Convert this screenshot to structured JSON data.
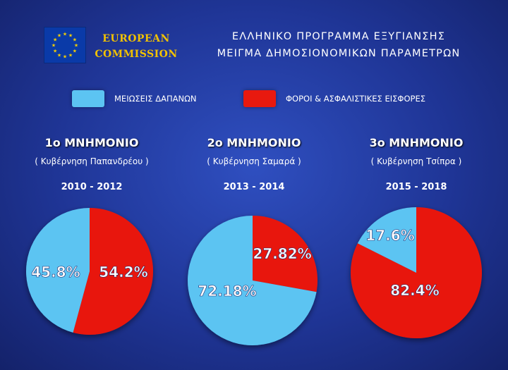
{
  "header": {
    "commission": [
      "EUROPEAN",
      "COMMISSION"
    ],
    "title_line1": "ΕΛΛΗΝΙΚΟ ΠΡΟΓΡΑΜΜΑ ΕΞΥΓΙΑΝΣΗΣ",
    "title_line2": "ΜΕΙΓΜΑ ΔΗΜΟΣΙΟΝΟΜΙΚΩΝ ΠΑΡΑΜΕΤΡΩΝ"
  },
  "legend": [
    {
      "label": "ΜΕΙΩΣΕΙΣ ΔΑΠΑΝΩΝ",
      "color": "#5cc4f2"
    },
    {
      "label": "ΦΟΡΟΙ & ΑΣΦΑΛΙΣΤΙΚΕΣ ΕΙΣΦΟΡΕΣ",
      "color": "#e8190f"
    }
  ],
  "chart_data": [
    {
      "type": "pie",
      "title": "1ο ΜΝΗΜΟΝΙΟ",
      "subtitle": "( Κυβέρνηση Παπανδρέου )",
      "period": "2010 - 2012",
      "slices": [
        {
          "label": "ΜΕΙΩΣΕΙΣ ΔΑΠΑΝΩΝ",
          "value": 45.8,
          "display": "45.8%",
          "color": "#5cc4f2"
        },
        {
          "label": "ΦΟΡΟΙ & ΑΣΦΑΛΙΣΤΙΚΕΣ ΕΙΣΦΟΡΕΣ",
          "value": 54.2,
          "display": "54.2%",
          "color": "#e8190f"
        }
      ]
    },
    {
      "type": "pie",
      "title": "2ο ΜΝΗΜΟΝΙΟ",
      "subtitle": "( Κυβέρνηση Σαμαρά )",
      "period": "2013 - 2014",
      "slices": [
        {
          "label": "ΜΕΙΩΣΕΙΣ ΔΑΠΑΝΩΝ",
          "value": 72.18,
          "display": "72.18%",
          "color": "#5cc4f2"
        },
        {
          "label": "ΦΟΡΟΙ & ΑΣΦΑΛΙΣΤΙΚΕΣ ΕΙΣΦΟΡΕΣ",
          "value": 27.82,
          "display": "27.82%",
          "color": "#e8190f"
        }
      ]
    },
    {
      "type": "pie",
      "title": "3ο ΜΝΗΜΟΝΙΟ",
      "subtitle": "( Κυβέρνηση Τσίπρα )",
      "period": "2015 - 2018",
      "slices": [
        {
          "label": "ΜΕΙΩΣΕΙΣ ΔΑΠΑΝΩΝ",
          "value": 17.6,
          "display": "17.6%",
          "color": "#5cc4f2"
        },
        {
          "label": "ΦΟΡΟΙ & ΑΣΦΑΛΙΣΤΙΚΕΣ ΕΙΣΦΟΡΕΣ",
          "value": 82.4,
          "display": "82.4%",
          "color": "#e8190f"
        }
      ]
    }
  ]
}
